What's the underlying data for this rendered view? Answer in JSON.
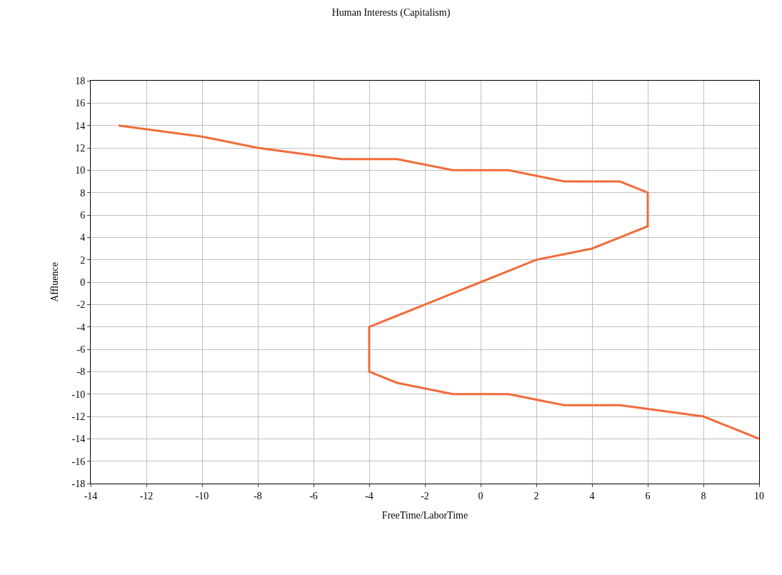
{
  "chart_data": {
    "type": "line",
    "title": "Human Interests (Capitalism)",
    "xlabel": "FreeTime/LaborTime",
    "ylabel": "Affluence",
    "x": [
      -13,
      -10,
      -8,
      -5,
      -3,
      -1,
      1,
      3,
      5,
      6,
      6,
      6,
      6,
      5,
      4,
      2,
      1,
      0,
      -1,
      -2,
      -3,
      -4,
      -4,
      -4,
      -4,
      -4,
      -3,
      -1,
      0,
      1,
      3,
      5,
      8,
      9,
      10
    ],
    "series": [
      {
        "color": "#f26b3a",
        "values": [
          14,
          13,
          12,
          11,
          11,
          10,
          10,
          9,
          9,
          8,
          7,
          6,
          5,
          4,
          3,
          2,
          1,
          0,
          -1,
          -2,
          -3,
          -4,
          -5,
          -6,
          -7,
          -8,
          -9,
          -10,
          -10,
          -10,
          -11,
          -11,
          -12,
          -13,
          -14
        ]
      }
    ],
    "xlim": [
      -14,
      10
    ],
    "xticks": [
      -14,
      -12,
      -10,
      -8,
      -6,
      -4,
      -2,
      0,
      2,
      4,
      6,
      8,
      10
    ],
    "ylim": [
      -18,
      18
    ],
    "yticks": [
      -18,
      -16,
      -14,
      -12,
      -10,
      -8,
      -6,
      -4,
      -2,
      0,
      2,
      4,
      6,
      8,
      10,
      12,
      14,
      16,
      18
    ],
    "grid": true,
    "legend": false,
    "marker": "none",
    "line_style": "solid"
  }
}
